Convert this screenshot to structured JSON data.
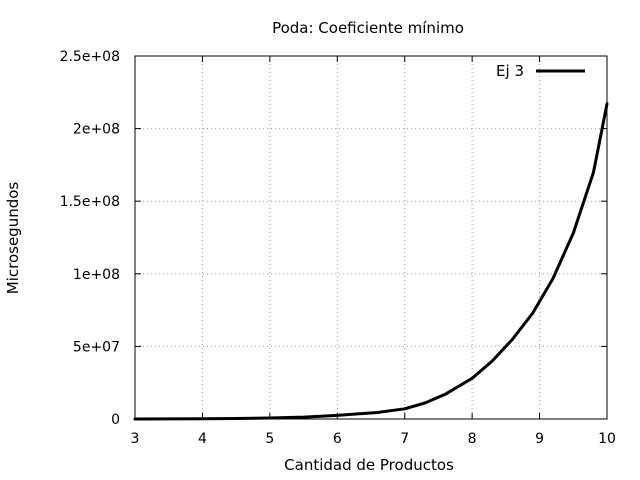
{
  "chart_data": {
    "type": "line",
    "title": "Poda: Coeficiente mínimo",
    "xlabel": "Cantidad de Productos",
    "ylabel": "Microsegundos",
    "xlim": [
      3,
      10
    ],
    "ylim": [
      0,
      250000000
    ],
    "x_ticks": [
      3,
      4,
      5,
      6,
      7,
      8,
      9,
      10
    ],
    "x_tick_labels": [
      "3",
      "4",
      "5",
      "6",
      "7",
      "8",
      "9",
      "10"
    ],
    "y_ticks": [
      0,
      50000000,
      100000000,
      150000000,
      200000000,
      250000000
    ],
    "y_tick_labels": [
      "0",
      "5e+07",
      "1e+08",
      "1.5e+08",
      "2e+08",
      "2.5e+08"
    ],
    "grid": true,
    "legend_position": "top-right",
    "series": [
      {
        "name": "Ej 3",
        "color": "#000000",
        "x": [
          3,
          3.5,
          4,
          4.5,
          5,
          5.5,
          6,
          6.3,
          6.6,
          7,
          7.3,
          7.6,
          8,
          8.3,
          8.6,
          8.9,
          9.2,
          9.5,
          9.8,
          10
        ],
        "y": [
          20000,
          60000,
          150000,
          350000,
          700000,
          1300000,
          2500000,
          3500000,
          4500000,
          7000000,
          11000000,
          17000000,
          28000000,
          40000000,
          55000000,
          73000000,
          97000000,
          128000000,
          170000000,
          217000000
        ]
      }
    ]
  }
}
